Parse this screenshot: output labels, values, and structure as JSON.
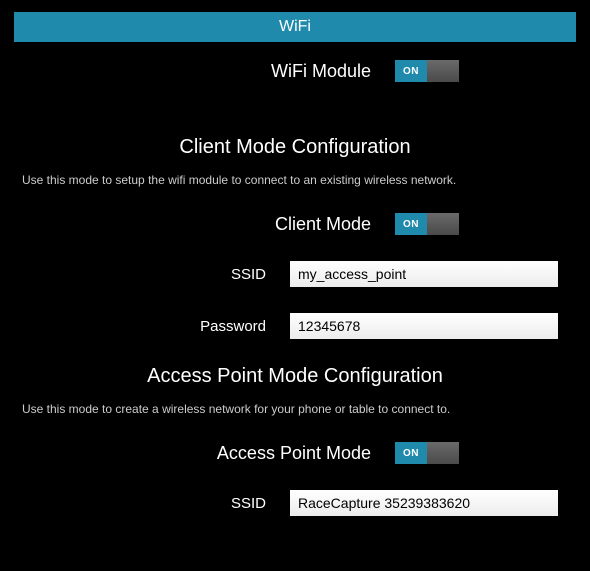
{
  "colors": {
    "accent": "#1f8aab",
    "background": "#000000",
    "text": "#ffffff",
    "desc_text": "#cccccc",
    "input_bg_top": "#ffffff",
    "input_bg_bottom": "#ececec",
    "toggle_off_top": "#6a6a6a",
    "toggle_off_bottom": "#4a4a4a"
  },
  "header": {
    "title": "WiFi"
  },
  "wifi_module": {
    "label": "WiFi Module",
    "toggle_text": "ON",
    "state": true
  },
  "client_mode": {
    "section_title": "Client Mode Configuration",
    "description": "Use this mode to setup the wifi module to connect to an existing wireless network.",
    "toggle_label": "Client Mode",
    "toggle_text": "ON",
    "state": true,
    "ssid_label": "SSID",
    "ssid_value": "my_access_point",
    "password_label": "Password",
    "password_value": "12345678"
  },
  "ap_mode": {
    "section_title": "Access Point Mode Configuration",
    "description": "Use this mode to create a wireless network for your phone or table to connect to.",
    "toggle_label": "Access Point Mode",
    "toggle_text": "ON",
    "state": true,
    "ssid_label": "SSID",
    "ssid_value": "RaceCapture 35239383620"
  }
}
